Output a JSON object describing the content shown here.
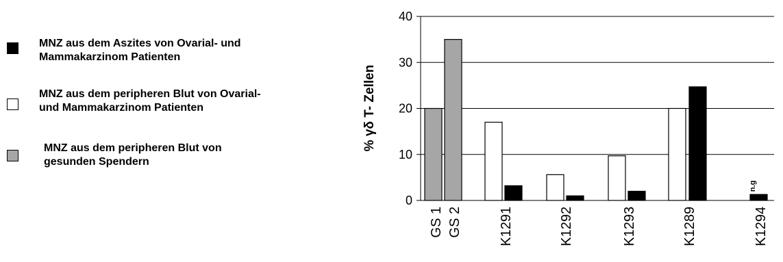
{
  "legend": {
    "items": [
      {
        "color": "#000000",
        "line1": "MNZ aus dem Aszites von Ovarial- und",
        "line2": "Mammakarzinom Patienten"
      },
      {
        "color": "#ffffff",
        "line1": "MNZ aus dem peripheren Blut von Ovarial-",
        "line2": "und Mammakarzinom Patienten"
      },
      {
        "color": "#a6a6a6",
        "line1": "MNZ aus dem peripheren Blut von",
        "line2": "gesunden Spendern"
      }
    ]
  },
  "chart_data": {
    "type": "bar",
    "ylabel": "% γδ T- Zellen",
    "ylim": [
      0,
      40
    ],
    "yticks": [
      0,
      10,
      20,
      30,
      40
    ],
    "grid": true,
    "legend_position": "left",
    "colors": {
      "healthy": "#a6a6a6",
      "blood": "#ffffff",
      "ascites": "#000000"
    },
    "bars": [
      {
        "category": "GS 1",
        "group": "healthy",
        "value": 20
      },
      {
        "category": "GS 2",
        "group": "healthy",
        "value": 35
      },
      {
        "category": "K1291",
        "group": "blood",
        "value": 17
      },
      {
        "category": "K1291",
        "group": "ascites",
        "value": 3.2
      },
      {
        "category": "K1292",
        "group": "blood",
        "value": 5.6
      },
      {
        "category": "K1292",
        "group": "ascites",
        "value": 1.0
      },
      {
        "category": "K1293",
        "group": "blood",
        "value": 9.7
      },
      {
        "category": "K1293",
        "group": "ascites",
        "value": 2.0
      },
      {
        "category": "K1289",
        "group": "blood",
        "value": 20
      },
      {
        "category": "K1289",
        "group": "ascites",
        "value": 24.7
      },
      {
        "category": "K1294",
        "group": "ascites",
        "value": 1.3
      }
    ],
    "xlabels": [
      "GS 1",
      "GS 2",
      "K1291",
      "K1292",
      "K1293",
      "K1289",
      "K1294"
    ],
    "annotations": [
      {
        "text": "n.g",
        "category": "K1294"
      }
    ]
  }
}
